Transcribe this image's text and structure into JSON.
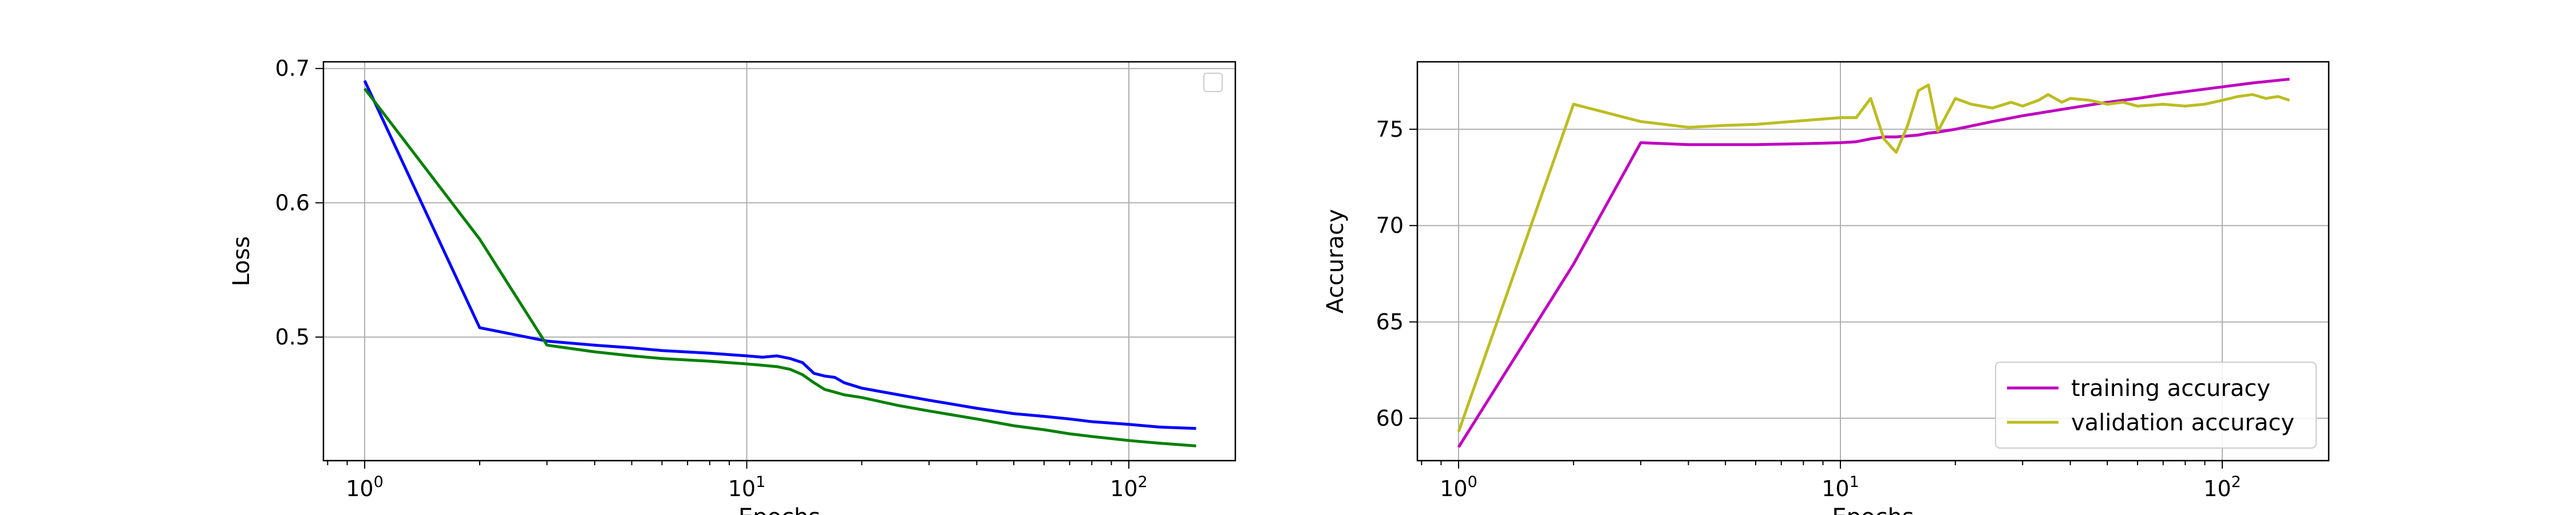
{
  "chart_data": [
    {
      "type": "line",
      "xscale": "log",
      "xlim": [
        0.78,
        190
      ],
      "ylim": [
        0.408,
        0.705
      ],
      "xlabel": "Epochs",
      "ylabel": "Loss",
      "grid": true,
      "legend": {
        "position": "top-right",
        "entries": []
      },
      "xticks": [
        {
          "value": 1,
          "base": "10",
          "exp": "0"
        },
        {
          "value": 10,
          "base": "10",
          "exp": "1"
        },
        {
          "value": 100,
          "base": "10",
          "exp": "2"
        }
      ],
      "yticks": [
        {
          "value": 0.5,
          "label": "0.5"
        },
        {
          "value": 0.6,
          "label": "0.6"
        },
        {
          "value": 0.7,
          "label": "0.7"
        }
      ],
      "series": [
        {
          "color": "#0000ff",
          "x": [
            1,
            2,
            3,
            4,
            5,
            6,
            8,
            10,
            11,
            12,
            13,
            14,
            15,
            16,
            17,
            18,
            20,
            25,
            30,
            40,
            50,
            60,
            70,
            80,
            100,
            120,
            150
          ],
          "y": [
            0.691,
            0.507,
            0.497,
            0.494,
            0.492,
            0.49,
            0.488,
            0.486,
            0.485,
            0.486,
            0.484,
            0.481,
            0.473,
            0.471,
            0.47,
            0.466,
            0.462,
            0.457,
            0.453,
            0.447,
            0.443,
            0.441,
            0.439,
            0.437,
            0.435,
            0.433,
            0.432
          ]
        },
        {
          "color": "#008000",
          "x": [
            1,
            2,
            3,
            4,
            5,
            6,
            8,
            10,
            11,
            12,
            13,
            14,
            15,
            16,
            17,
            18,
            20,
            25,
            30,
            40,
            50,
            60,
            70,
            80,
            100,
            120,
            150
          ],
          "y": [
            0.685,
            0.573,
            0.494,
            0.489,
            0.486,
            0.484,
            0.482,
            0.48,
            0.479,
            0.478,
            0.476,
            0.472,
            0.466,
            0.461,
            0.459,
            0.457,
            0.455,
            0.449,
            0.445,
            0.439,
            0.434,
            0.431,
            0.428,
            0.426,
            0.423,
            0.421,
            0.419
          ]
        }
      ]
    },
    {
      "type": "line",
      "xscale": "log",
      "xlim": [
        0.78,
        190
      ],
      "ylim": [
        57.8,
        78.5
      ],
      "xlabel": "Epochs",
      "ylabel": "Accuracy",
      "grid": true,
      "legend": {
        "position": "bottom-right",
        "entries": [
          "training accuracy",
          "validation accuracy"
        ]
      },
      "xticks": [
        {
          "value": 1,
          "base": "10",
          "exp": "0"
        },
        {
          "value": 10,
          "base": "10",
          "exp": "1"
        },
        {
          "value": 100,
          "base": "10",
          "exp": "2"
        }
      ],
      "yticks": [
        {
          "value": 60,
          "label": "60"
        },
        {
          "value": 65,
          "label": "65"
        },
        {
          "value": 70,
          "label": "70"
        },
        {
          "value": 75,
          "label": "75"
        }
      ],
      "series": [
        {
          "name": "training accuracy",
          "color": "#bf00bf",
          "x": [
            1,
            2,
            3,
            4,
            5,
            6,
            8,
            10,
            11,
            12,
            13,
            14,
            15,
            16,
            17,
            18,
            20,
            25,
            30,
            40,
            50,
            60,
            70,
            80,
            100,
            120,
            150
          ],
          "y": [
            58.5,
            68.0,
            74.3,
            74.2,
            74.2,
            74.2,
            74.25,
            74.3,
            74.35,
            74.5,
            74.6,
            74.6,
            74.65,
            74.7,
            74.8,
            74.85,
            75.0,
            75.4,
            75.7,
            76.1,
            76.4,
            76.6,
            76.8,
            76.95,
            77.2,
            77.4,
            77.6
          ]
        },
        {
          "name": "validation accuracy",
          "color": "#bcbd22",
          "x": [
            1,
            2,
            3,
            4,
            5,
            6,
            8,
            10,
            11,
            12,
            13,
            14,
            15,
            16,
            17,
            18,
            20,
            22,
            25,
            28,
            30,
            33,
            35,
            38,
            40,
            45,
            50,
            55,
            60,
            70,
            80,
            90,
            100,
            110,
            120,
            130,
            140,
            150
          ],
          "y": [
            59.3,
            76.3,
            75.4,
            75.1,
            75.2,
            75.25,
            75.45,
            75.6,
            75.6,
            76.6,
            74.5,
            73.8,
            75.2,
            77.0,
            77.3,
            74.9,
            76.6,
            76.3,
            76.1,
            76.4,
            76.2,
            76.5,
            76.8,
            76.4,
            76.6,
            76.5,
            76.3,
            76.4,
            76.2,
            76.3,
            76.2,
            76.3,
            76.5,
            76.7,
            76.8,
            76.6,
            76.7,
            76.5
          ]
        }
      ]
    }
  ]
}
